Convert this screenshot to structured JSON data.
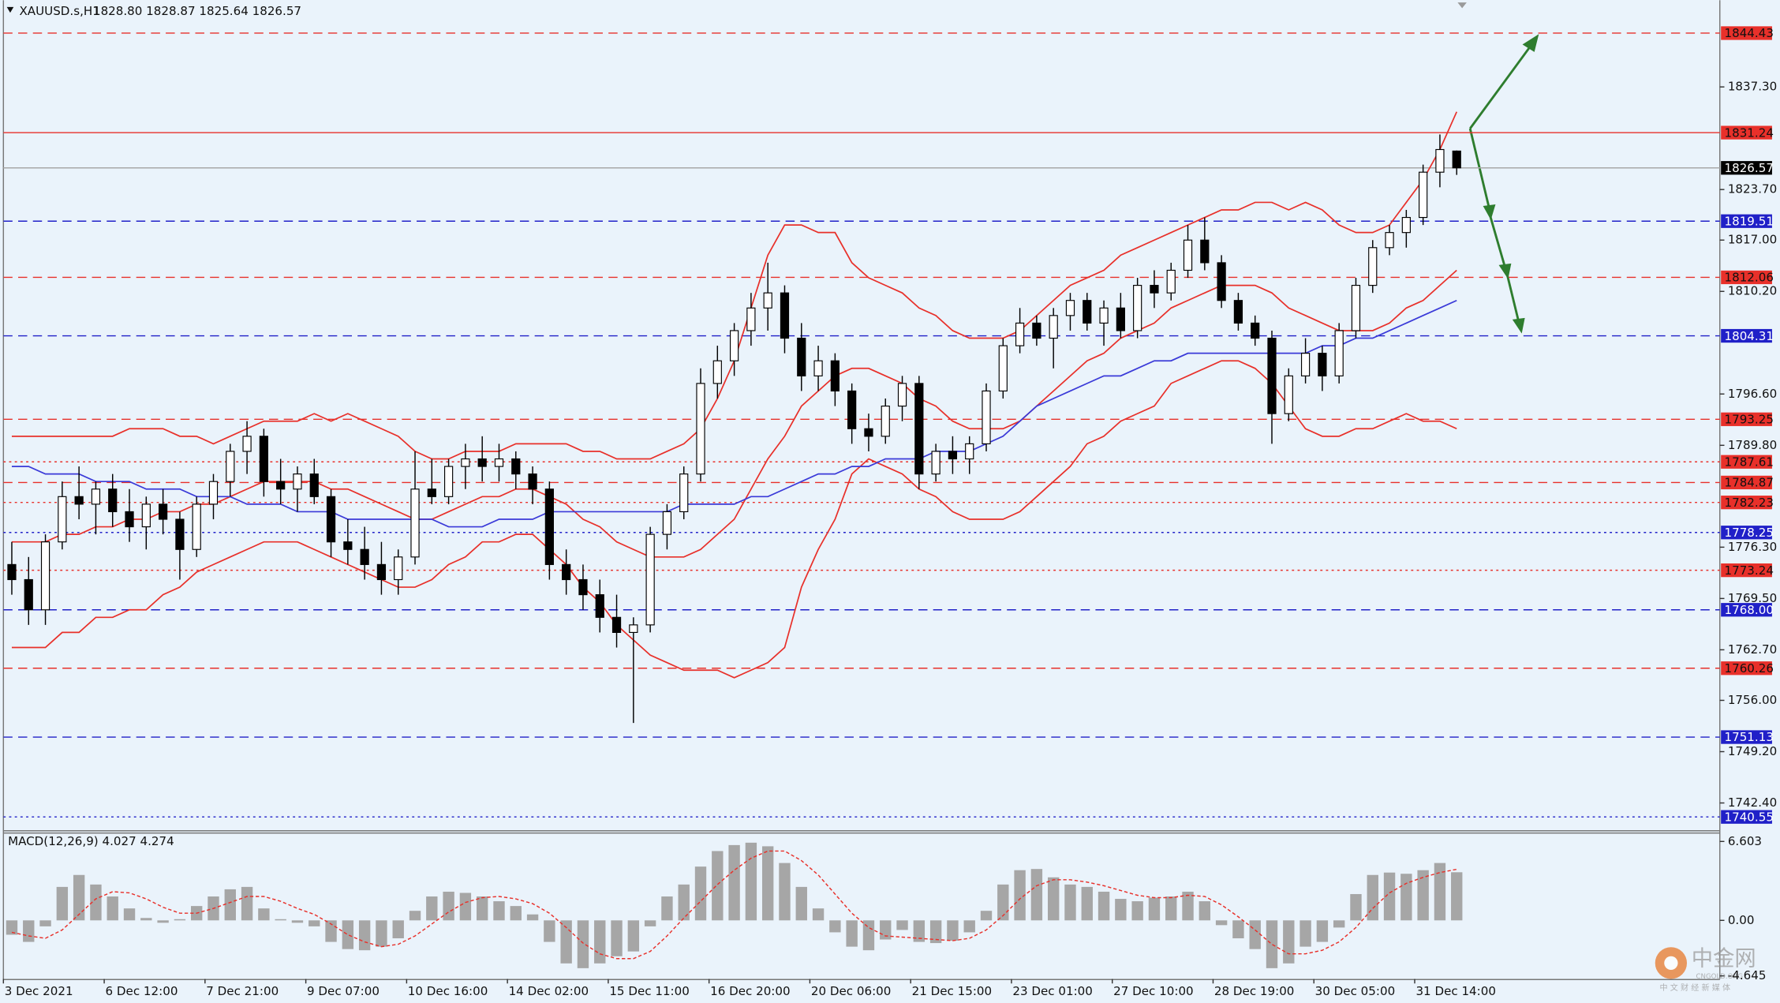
{
  "header": {
    "symbol": "XAUUSD.s,H1",
    "quote": "1828.80 1828.87 1825.64 1826.57"
  },
  "watermark": {
    "brand": "中金网",
    "site": "CNGOLD.ORG",
    "slogan": "中 文 财 经 新 媒 体"
  },
  "chart_data": {
    "type": "candlestick",
    "ylim": [
      1738.79,
      1848.79
    ],
    "yticks": [
      {
        "value": 1837.3,
        "label": "1837.30"
      },
      {
        "value": 1823.7,
        "label": "1823.70"
      },
      {
        "value": 1817,
        "label": "1817.00"
      },
      {
        "value": 1810.2,
        "label": "1810.20"
      },
      {
        "value": 1796.6,
        "label": "1796.60"
      },
      {
        "value": 1789.8,
        "label": "1789.80"
      },
      {
        "value": 1776.3,
        "label": "1776.30"
      },
      {
        "value": 1769.5,
        "label": "1769.50"
      },
      {
        "value": 1762.7,
        "label": "1762.70"
      },
      {
        "value": 1756,
        "label": "1756.00"
      },
      {
        "value": 1749.2,
        "label": "1749.20"
      },
      {
        "value": 1742.4,
        "label": "1742.40"
      }
    ],
    "levels": [
      {
        "value": 1844.43,
        "color": "#e8302a",
        "style": "dashed"
      },
      {
        "value": 1831.24,
        "color": "#e8302a",
        "style": "solid"
      },
      {
        "value": 1826.57,
        "color": "#a8a8a8",
        "style": "solid",
        "label_color": "#000000"
      },
      {
        "value": 1819.51,
        "color": "#2020c8",
        "style": "dashed"
      },
      {
        "value": 1812.06,
        "color": "#e8302a",
        "style": "dashed"
      },
      {
        "value": 1804.31,
        "color": "#2020c8",
        "style": "dashed"
      },
      {
        "value": 1793.25,
        "color": "#e8302a",
        "style": "dashed"
      },
      {
        "value": 1787.61,
        "color": "#e8302a",
        "style": "dotted"
      },
      {
        "value": 1784.87,
        "color": "#e8302a",
        "style": "dashed"
      },
      {
        "value": 1782.23,
        "color": "#e8302a",
        "style": "dotted"
      },
      {
        "value": 1778.25,
        "color": "#2020c8",
        "style": "dotted"
      },
      {
        "value": 1773.24,
        "color": "#e8302a",
        "style": "dotted"
      },
      {
        "value": 1768,
        "label": "1768.00",
        "color": "#2020c8",
        "style": "dashed"
      },
      {
        "value": 1760.26,
        "color": "#e8302a",
        "style": "dashed"
      },
      {
        "value": 1751.13,
        "color": "#2020c8",
        "style": "dashed"
      },
      {
        "value": 1740.55,
        "color": "#2020c8",
        "style": "dotted"
      }
    ],
    "categories": [
      "3 Dec 2021",
      null,
      null,
      null,
      null,
      null,
      "6 Dec 12:00",
      null,
      null,
      null,
      null,
      null,
      "7 Dec 21:00",
      null,
      null,
      null,
      null,
      null,
      "9 Dec 07:00",
      null,
      null,
      null,
      null,
      null,
      "10 Dec 16:00",
      null,
      null,
      null,
      null,
      null,
      "14 Dec 02:00",
      null,
      null,
      null,
      null,
      null,
      "15 Dec 11:00",
      null,
      null,
      null,
      null,
      null,
      "16 Dec 20:00",
      null,
      null,
      null,
      null,
      null,
      "20 Dec 06:00",
      null,
      null,
      null,
      null,
      null,
      "21 Dec 15:00",
      null,
      null,
      null,
      null,
      null,
      "23 Dec 01:00",
      null,
      null,
      null,
      null,
      null,
      "27 Dec 10:00",
      null,
      null,
      null,
      null,
      null,
      "28 Dec 19:00",
      null,
      null,
      null,
      null,
      null,
      "30 Dec 05:00",
      null,
      null,
      null,
      null,
      null,
      "31 Dec 14:00",
      null,
      null
    ],
    "ohlc": [
      [
        1774,
        1777,
        1770,
        1772
      ],
      [
        1772,
        1775,
        1766,
        1768
      ],
      [
        1768,
        1778,
        1766,
        1777
      ],
      [
        1777,
        1785,
        1776,
        1783
      ],
      [
        1783,
        1787,
        1780,
        1782
      ],
      [
        1782,
        1785,
        1778,
        1784
      ],
      [
        1784,
        1786,
        1779,
        1781
      ],
      [
        1781,
        1784,
        1777,
        1779
      ],
      [
        1779,
        1783,
        1776,
        1782
      ],
      [
        1782,
        1784,
        1778,
        1780
      ],
      [
        1780,
        1781,
        1772,
        1776
      ],
      [
        1776,
        1783,
        1775,
        1782
      ],
      [
        1782,
        1786,
        1780,
        1785
      ],
      [
        1785,
        1790,
        1783,
        1789
      ],
      [
        1789,
        1793,
        1786,
        1791
      ],
      [
        1791,
        1792,
        1783,
        1785
      ],
      [
        1785,
        1788,
        1782,
        1784
      ],
      [
        1784,
        1787,
        1781,
        1786
      ],
      [
        1786,
        1788,
        1782,
        1783
      ],
      [
        1783,
        1784,
        1775,
        1777
      ],
      [
        1777,
        1780,
        1774,
        1776
      ],
      [
        1776,
        1779,
        1772,
        1774
      ],
      [
        1774,
        1777,
        1770,
        1772
      ],
      [
        1772,
        1776,
        1770,
        1775
      ],
      [
        1775,
        1789,
        1774,
        1784
      ],
      [
        1784,
        1788,
        1782,
        1783
      ],
      [
        1783,
        1788,
        1782,
        1787
      ],
      [
        1787,
        1790,
        1784,
        1788
      ],
      [
        1788,
        1791,
        1785,
        1787
      ],
      [
        1787,
        1790,
        1785,
        1788
      ],
      [
        1788,
        1789,
        1784,
        1786
      ],
      [
        1786,
        1787,
        1782,
        1784
      ],
      [
        1784,
        1785,
        1772,
        1774
      ],
      [
        1774,
        1776,
        1770,
        1772
      ],
      [
        1772,
        1774,
        1768,
        1770
      ],
      [
        1770,
        1772,
        1765,
        1767
      ],
      [
        1767,
        1770,
        1763,
        1765
      ],
      [
        1765,
        1767,
        1753,
        1766
      ],
      [
        1766,
        1779,
        1765,
        1778
      ],
      [
        1778,
        1782,
        1776,
        1781
      ],
      [
        1781,
        1787,
        1780,
        1786
      ],
      [
        1786,
        1800,
        1785,
        1798
      ],
      [
        1798,
        1803,
        1796,
        1801
      ],
      [
        1801,
        1806,
        1799,
        1805
      ],
      [
        1805,
        1810,
        1803,
        1808
      ],
      [
        1808,
        1814,
        1805,
        1810
      ],
      [
        1810,
        1811,
        1802,
        1804
      ],
      [
        1804,
        1806,
        1797,
        1799
      ],
      [
        1799,
        1803,
        1797,
        1801
      ],
      [
        1801,
        1802,
        1795,
        1797
      ],
      [
        1797,
        1798,
        1790,
        1792
      ],
      [
        1792,
        1794,
        1789,
        1791
      ],
      [
        1791,
        1796,
        1790,
        1795
      ],
      [
        1795,
        1799,
        1793,
        1798
      ],
      [
        1798,
        1799,
        1784,
        1786
      ],
      [
        1786,
        1790,
        1785,
        1789
      ],
      [
        1789,
        1791,
        1786,
        1788
      ],
      [
        1788,
        1791,
        1786,
        1790
      ],
      [
        1790,
        1798,
        1789,
        1797
      ],
      [
        1797,
        1804,
        1796,
        1803
      ],
      [
        1803,
        1808,
        1802,
        1806
      ],
      [
        1806,
        1807,
        1803,
        1804
      ],
      [
        1804,
        1808,
        1800,
        1807
      ],
      [
        1807,
        1810,
        1805,
        1809
      ],
      [
        1809,
        1810,
        1805,
        1806
      ],
      [
        1806,
        1809,
        1803,
        1808
      ],
      [
        1808,
        1810,
        1804,
        1805
      ],
      [
        1805,
        1812,
        1804,
        1811
      ],
      [
        1811,
        1813,
        1808,
        1810
      ],
      [
        1810,
        1814,
        1809,
        1813
      ],
      [
        1813,
        1819,
        1812,
        1817
      ],
      [
        1817,
        1820,
        1813,
        1814
      ],
      [
        1814,
        1815,
        1808,
        1809
      ],
      [
        1809,
        1810,
        1805,
        1806
      ],
      [
        1806,
        1807,
        1803,
        1804
      ],
      [
        1804,
        1805,
        1790,
        1794
      ],
      [
        1794,
        1800,
        1793,
        1799
      ],
      [
        1799,
        1804,
        1798,
        1802
      ],
      [
        1802,
        1803,
        1797,
        1799
      ],
      [
        1799,
        1806,
        1798,
        1805
      ],
      [
        1805,
        1812,
        1804,
        1811
      ],
      [
        1811,
        1817,
        1810,
        1816
      ],
      [
        1816,
        1819,
        1815,
        1818
      ],
      [
        1818,
        1821,
        1816,
        1820
      ],
      [
        1820,
        1827,
        1819,
        1826
      ],
      [
        1826,
        1831,
        1824,
        1829
      ],
      [
        1828.8,
        1828.87,
        1825.64,
        1826.57
      ]
    ],
    "overlays": [
      {
        "color": "#e8302a",
        "values": [
          1791,
          1791,
          1791,
          1791,
          1791,
          1791,
          1791,
          1792,
          1792,
          1792,
          1791,
          1791,
          1790,
          1791,
          1792,
          1793,
          1793,
          1793,
          1794,
          1793,
          1794,
          1793,
          1792,
          1791,
          1789,
          1788,
          1788,
          1789,
          1789,
          1789,
          1790,
          1790,
          1790,
          1790,
          1789,
          1789,
          1788,
          1788,
          1788,
          1789,
          1790,
          1792,
          1796,
          1801,
          1808,
          1815,
          1819,
          1819,
          1818,
          1818,
          1814,
          1812,
          1811,
          1810,
          1808,
          1807,
          1805,
          1804,
          1804,
          1804,
          1805,
          1807,
          1809,
          1811,
          1812,
          1813,
          1815,
          1816,
          1817,
          1818,
          1819,
          1820,
          1821,
          1821,
          1822,
          1822,
          1821,
          1822,
          1821,
          1819,
          1818,
          1818,
          1819,
          1822,
          1825,
          1829,
          1834
        ]
      },
      {
        "color": "#e8302a",
        "values": [
          1777,
          1777,
          1777,
          1778,
          1778,
          1779,
          1779,
          1780,
          1780,
          1781,
          1781,
          1782,
          1782,
          1783,
          1784,
          1785,
          1785,
          1785,
          1785,
          1784,
          1784,
          1783,
          1782,
          1781,
          1780,
          1780,
          1781,
          1782,
          1783,
          1783,
          1784,
          1784,
          1783,
          1782,
          1780,
          1779,
          1777,
          1776,
          1775,
          1775,
          1775,
          1776,
          1778,
          1780,
          1784,
          1788,
          1791,
          1795,
          1797,
          1799,
          1800,
          1800,
          1799,
          1798,
          1796,
          1795,
          1793,
          1792,
          1792,
          1792,
          1793,
          1795,
          1797,
          1799,
          1801,
          1802,
          1804,
          1805,
          1806,
          1808,
          1809,
          1810,
          1811,
          1811,
          1811,
          1810,
          1808,
          1807,
          1806,
          1805,
          1805,
          1805,
          1806,
          1808,
          1809,
          1811,
          1813
        ]
      },
      {
        "color": "#e8302a",
        "values": [
          1763,
          1763,
          1763,
          1765,
          1765,
          1767,
          1767,
          1768,
          1768,
          1770,
          1771,
          1773,
          1774,
          1775,
          1776,
          1777,
          1777,
          1777,
          1776,
          1775,
          1774,
          1773,
          1772,
          1771,
          1771,
          1772,
          1774,
          1775,
          1777,
          1777,
          1778,
          1778,
          1776,
          1774,
          1771,
          1769,
          1766,
          1764,
          1762,
          1761,
          1760,
          1760,
          1760,
          1759,
          1760,
          1761,
          1763,
          1771,
          1776,
          1780,
          1786,
          1788,
          1787,
          1786,
          1784,
          1783,
          1781,
          1780,
          1780,
          1780,
          1781,
          1783,
          1785,
          1787,
          1790,
          1791,
          1793,
          1794,
          1795,
          1798,
          1799,
          1800,
          1801,
          1801,
          1800,
          1798,
          1795,
          1792,
          1791,
          1791,
          1792,
          1792,
          1793,
          1794,
          1793,
          1793,
          1792
        ]
      },
      {
        "color": "#3a3ad8",
        "values": [
          1787,
          1787,
          1786,
          1786,
          1786,
          1785,
          1785,
          1785,
          1784,
          1784,
          1784,
          1783,
          1783,
          1783,
          1782,
          1782,
          1782,
          1781,
          1781,
          1781,
          1780,
          1780,
          1780,
          1780,
          1780,
          1780,
          1779,
          1779,
          1779,
          1780,
          1780,
          1780,
          1781,
          1781,
          1781,
          1781,
          1781,
          1781,
          1781,
          1781,
          1782,
          1782,
          1782,
          1782,
          1783,
          1783,
          1784,
          1785,
          1786,
          1786,
          1787,
          1787,
          1788,
          1788,
          1788,
          1789,
          1789,
          1789,
          1790,
          1791,
          1793,
          1795,
          1796,
          1797,
          1798,
          1799,
          1799,
          1800,
          1801,
          1801,
          1802,
          1802,
          1802,
          1802,
          1802,
          1802,
          1802,
          1802,
          1803,
          1803,
          1804,
          1804,
          1805,
          1806,
          1807,
          1808,
          1809
        ]
      }
    ],
    "macd": {
      "label": "MACD(12,26,9) 4.027 4.274",
      "color": "#a6a6a6",
      "signal_color": "#e8302a",
      "y2lim": [
        -4.9,
        7.26
      ],
      "y2ticks": [
        6.603,
        {
          "value": 0,
          "label": "0.00"
        },
        -4.645
      ],
      "values": [
        -1.2,
        -1.8,
        -0.5,
        2.8,
        3.8,
        3.0,
        2.0,
        1.0,
        0.2,
        -0.2,
        0.1,
        1.2,
        2.0,
        2.6,
        2.8,
        1.0,
        0.1,
        -0.2,
        -0.5,
        -1.8,
        -2.4,
        -2.5,
        -2.2,
        -1.5,
        0.8,
        2.0,
        2.4,
        2.3,
        2.0,
        1.6,
        1.2,
        0.5,
        -1.8,
        -3.6,
        -4.0,
        -3.6,
        -3.0,
        -2.6,
        -0.5,
        2.0,
        3.0,
        4.5,
        5.8,
        6.3,
        6.5,
        6.2,
        4.8,
        2.8,
        1.0,
        -1.0,
        -2.2,
        -2.5,
        -1.6,
        -0.8,
        -1.8,
        -1.9,
        -1.7,
        -1.0,
        0.8,
        3.0,
        4.2,
        4.3,
        3.6,
        3.0,
        2.8,
        2.4,
        1.8,
        1.6,
        1.9,
        2.0,
        2.4,
        1.6,
        -0.4,
        -1.5,
        -2.4,
        -4.0,
        -3.6,
        -2.2,
        -1.8,
        -0.6,
        2.2,
        3.8,
        4.0,
        3.9,
        4.2,
        4.8,
        4.027
      ],
      "signal": [
        -1.0,
        -1.3,
        -1.5,
        -0.8,
        0.5,
        1.8,
        2.4,
        2.3,
        1.8,
        1.1,
        0.6,
        0.6,
        1.0,
        1.5,
        2.0,
        2.0,
        1.6,
        1.0,
        0.5,
        -0.3,
        -1.2,
        -1.8,
        -2.2,
        -2.0,
        -1.3,
        -0.3,
        0.7,
        1.5,
        1.9,
        2.0,
        1.8,
        1.4,
        0.6,
        -0.6,
        -1.9,
        -2.8,
        -3.2,
        -3.2,
        -2.6,
        -1.3,
        0.2,
        1.6,
        3.0,
        4.2,
        5.2,
        5.8,
        5.8,
        5.0,
        3.8,
        2.2,
        0.6,
        -0.6,
        -1.3,
        -1.4,
        -1.5,
        -1.6,
        -1.7,
        -1.5,
        -0.8,
        0.4,
        1.8,
        2.9,
        3.4,
        3.4,
        3.2,
        2.9,
        2.5,
        2.1,
        1.9,
        1.9,
        2.1,
        2.0,
        1.3,
        0.3,
        -0.8,
        -2.0,
        -2.8,
        -2.8,
        -2.5,
        -1.8,
        -0.6,
        1.0,
        2.3,
        3.1,
        3.6,
        4.0,
        4.274
      ]
    }
  }
}
